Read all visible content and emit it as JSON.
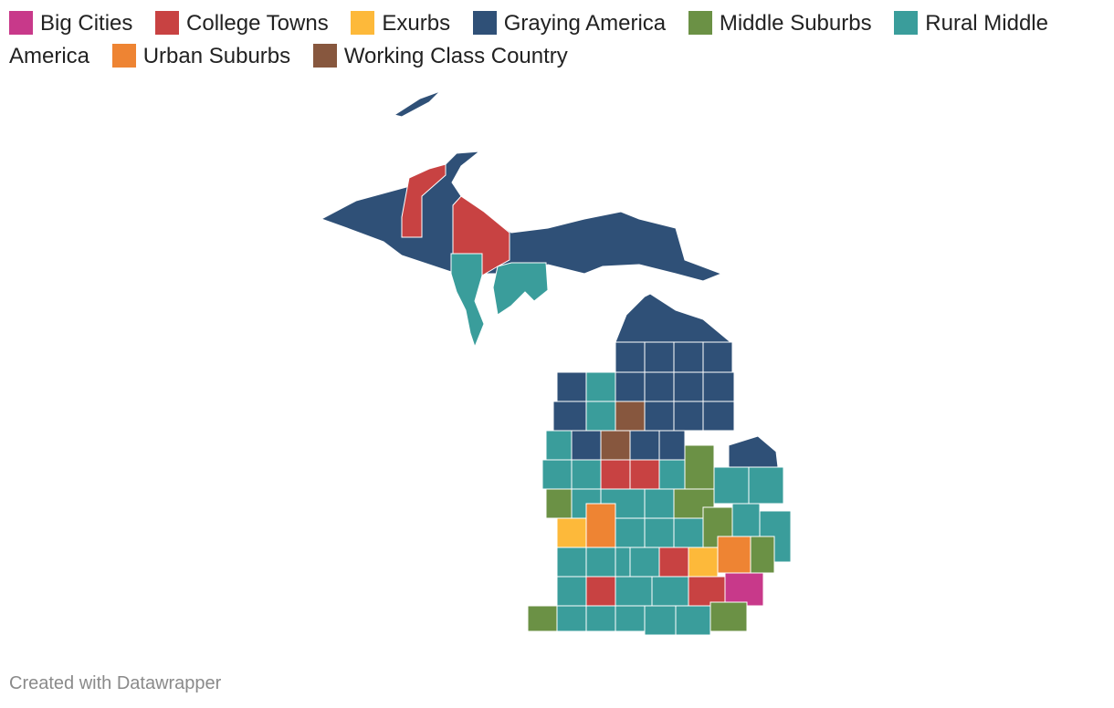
{
  "legend": [
    {
      "name": "Big Cities",
      "color": "#c8398a"
    },
    {
      "name": "College Towns",
      "color": "#c84242"
    },
    {
      "name": "Exurbs",
      "color": "#fdb93a"
    },
    {
      "name": "Graying America",
      "color": "#2f5077"
    },
    {
      "name": "Middle Suburbs",
      "color": "#6b9145"
    },
    {
      "name": "Rural Middle America",
      "color": "#3a9d9b"
    },
    {
      "name": "Urban Suburbs",
      "color": "#ee8433"
    },
    {
      "name": "Working Class Country",
      "color": "#87573e"
    }
  ],
  "footer": "Created with Datawrapper"
}
